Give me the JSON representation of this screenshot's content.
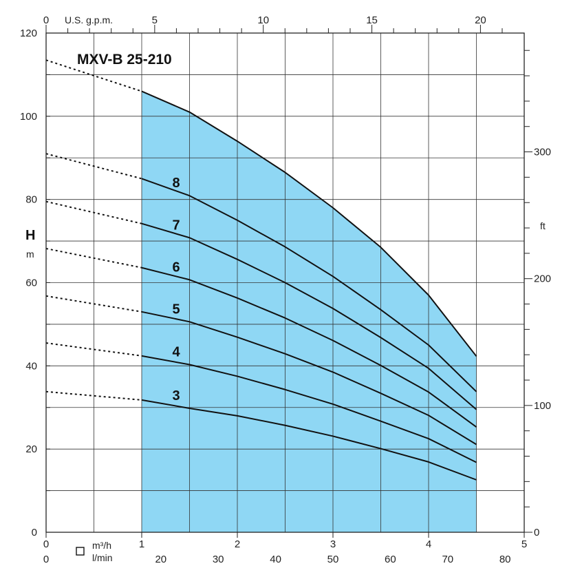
{
  "chart_data": {
    "type": "line",
    "title": "MXV-B 25-210",
    "y_axis": {
      "letter": "H",
      "unit": "m",
      "range": [
        0,
        120
      ],
      "ticks": [
        0,
        20,
        40,
        60,
        80,
        100,
        120
      ]
    },
    "y2_axis": {
      "unit": "ft",
      "range_ft": [
        0,
        393.7
      ],
      "ticks": [
        0,
        100,
        200,
        300
      ]
    },
    "x_axis_m3h": {
      "unit": "m³/h",
      "range": [
        0,
        5
      ],
      "ticks": [
        0,
        1,
        2,
        3,
        4,
        5
      ]
    },
    "x_axis_lmin": {
      "unit": "l/min",
      "ticks": [
        0,
        20,
        30,
        40,
        50,
        60,
        70,
        80
      ]
    },
    "x_axis_gpm": {
      "unit": "U.S. g.p.m.",
      "ticks": [
        0,
        5,
        10,
        15,
        20
      ]
    },
    "operating_range_m3h": [
      1,
      4.5
    ],
    "operating_range_color": "#8fd7f4",
    "grid": true,
    "series": [
      {
        "name": "3",
        "x": [
          0,
          1,
          1.5,
          2,
          2.5,
          3,
          3.5,
          4,
          4.5
        ],
        "y": [
          33.8,
          31.8,
          29.8,
          28.0,
          25.7,
          23.1,
          20.1,
          16.9,
          12.6
        ]
      },
      {
        "name": "4",
        "x": [
          0,
          1,
          1.5,
          2,
          2.5,
          3,
          3.5,
          4,
          4.5
        ],
        "y": [
          45.5,
          42.4,
          40.3,
          37.5,
          34.3,
          30.8,
          26.7,
          22.5,
          16.8
        ]
      },
      {
        "name": "5",
        "x": [
          0,
          1,
          1.5,
          2,
          2.5,
          3,
          3.5,
          4,
          4.5
        ],
        "y": [
          56.8,
          53.0,
          50.6,
          46.9,
          42.9,
          38.5,
          33.4,
          28.1,
          21.1
        ]
      },
      {
        "name": "6",
        "x": [
          0,
          1,
          1.5,
          2,
          2.5,
          3,
          3.5,
          4,
          4.5
        ],
        "y": [
          68.2,
          63.6,
          60.7,
          56.3,
          51.5,
          46.1,
          40.1,
          33.7,
          25.3
        ]
      },
      {
        "name": "7",
        "x": [
          0,
          1,
          1.5,
          2,
          2.5,
          3,
          3.5,
          4,
          4.5
        ],
        "y": [
          79.5,
          74.2,
          70.8,
          65.6,
          60.0,
          53.8,
          46.8,
          39.4,
          29.5
        ]
      },
      {
        "name": "8",
        "x": [
          0,
          1,
          1.5,
          2,
          2.5,
          3,
          3.5,
          4,
          4.5
        ],
        "y": [
          91.0,
          85.0,
          80.9,
          75.0,
          68.6,
          61.5,
          53.5,
          45.0,
          33.8
        ]
      },
      {
        "name": "",
        "x": [
          0,
          1,
          1.5,
          2,
          2.5,
          3,
          3.5,
          4,
          4.5
        ],
        "y": [
          113.5,
          106.0,
          101.0,
          94.0,
          86.5,
          78.0,
          68.5,
          57.0,
          42.3
        ]
      }
    ],
    "dashed_segment_x": [
      0,
      1
    ]
  }
}
